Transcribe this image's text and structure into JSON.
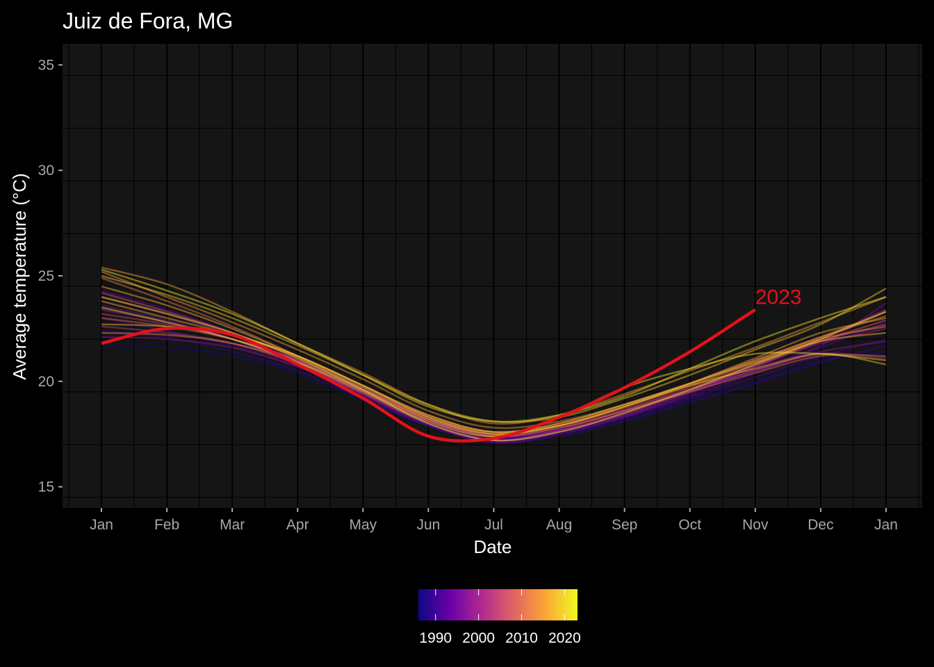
{
  "chart_data": {
    "type": "line",
    "title": "Juiz de Fora, MG",
    "xlabel": "Date",
    "ylabel": "Average temperature (°C)",
    "x_ticks": [
      "Jan",
      "Feb",
      "Mar",
      "Apr",
      "May",
      "Jun",
      "Jul",
      "Aug",
      "Sep",
      "Oct",
      "Nov",
      "Dec",
      "Jan"
    ],
    "ylim": [
      14,
      36
    ],
    "y_ticks": [
      15,
      20,
      25,
      30,
      35
    ],
    "grid": true,
    "background": "#151515",
    "legend": {
      "type": "colorbar",
      "placement": "bottom",
      "palette": "plasma",
      "colors": [
        "#0d0887",
        "#6a00a8",
        "#b12a90",
        "#e16462",
        "#fca636",
        "#f0f921"
      ],
      "range": [
        1986,
        2023
      ],
      "ticks": [
        "1990",
        "2000",
        "2010",
        "2020"
      ]
    },
    "highlight": {
      "name": "2023",
      "color": "#e3121b",
      "x": [
        0,
        1,
        2,
        3,
        4,
        5,
        6,
        7,
        8,
        9,
        10
      ],
      "y": [
        21.8,
        22.5,
        22.2,
        20.8,
        19.2,
        17.4,
        17.3,
        18.3,
        19.7,
        21.4,
        23.4
      ]
    },
    "series": [
      {
        "year": 1987,
        "x": [
          0,
          1,
          2,
          3,
          4,
          5,
          6,
          7,
          8,
          9,
          10,
          11,
          12
        ],
        "y": [
          21.7,
          21.6,
          21.2,
          20.4,
          19.1,
          17.9,
          17.2,
          17.5,
          18.2,
          19.1,
          20.0,
          21.0,
          21.4
        ]
      },
      {
        "year": 1989,
        "x": [
          0,
          1,
          2,
          3,
          4,
          5,
          6,
          7,
          8,
          9,
          10,
          11,
          12
        ],
        "y": [
          22.4,
          22.1,
          21.4,
          20.5,
          19.2,
          17.9,
          17.1,
          17.4,
          18.1,
          19.0,
          19.9,
          20.9,
          21.7
        ]
      },
      {
        "year": 1991,
        "x": [
          0,
          1,
          2,
          3,
          4,
          5,
          6,
          7,
          8,
          9,
          10,
          11,
          12
        ],
        "y": [
          23.0,
          22.4,
          21.7,
          20.7,
          19.4,
          18.1,
          17.3,
          17.6,
          18.3,
          19.2,
          20.2,
          21.2,
          22.0
        ]
      },
      {
        "year": 1993,
        "x": [
          0,
          1,
          2,
          3,
          4,
          5,
          6,
          7,
          8,
          9,
          10,
          11,
          12
        ],
        "y": [
          24.3,
          23.4,
          22.3,
          21.0,
          19.6,
          18.2,
          17.3,
          17.7,
          18.4,
          19.3,
          20.4,
          21.6,
          22.8
        ]
      },
      {
        "year": 1995,
        "x": [
          0,
          1,
          2,
          3,
          4,
          5,
          6,
          7,
          8,
          9,
          10,
          11,
          12
        ],
        "y": [
          23.6,
          22.9,
          22.0,
          20.8,
          19.3,
          17.9,
          17.1,
          17.5,
          18.3,
          19.4,
          20.6,
          21.7,
          23.7
        ]
      },
      {
        "year": 1997,
        "x": [
          0,
          1,
          2,
          3,
          4,
          5,
          6,
          7,
          8,
          9,
          10,
          11,
          12
        ],
        "y": [
          22.1,
          22.0,
          21.6,
          20.7,
          19.5,
          18.2,
          17.4,
          17.7,
          18.5,
          19.5,
          20.5,
          21.4,
          21.9
        ]
      },
      {
        "year": 1999,
        "x": [
          0,
          1,
          2,
          3,
          4,
          5,
          6,
          7,
          8,
          9,
          10,
          11,
          12
        ],
        "y": [
          23.4,
          22.8,
          22.0,
          20.9,
          19.5,
          18.1,
          17.2,
          17.6,
          18.4,
          19.5,
          20.7,
          21.8,
          22.5
        ]
      },
      {
        "year": 2001,
        "x": [
          0,
          1,
          2,
          3,
          4,
          5,
          6,
          7,
          8,
          9,
          10,
          11,
          12
        ],
        "y": [
          24.0,
          23.2,
          22.2,
          20.9,
          19.4,
          18.0,
          17.2,
          17.6,
          18.5,
          19.6,
          20.8,
          22.0,
          23.4
        ]
      },
      {
        "year": 2003,
        "x": [
          0,
          1,
          2,
          3,
          4,
          5,
          6,
          7,
          8,
          9,
          10,
          11,
          12
        ],
        "y": [
          22.6,
          22.3,
          21.8,
          20.8,
          19.4,
          18.0,
          17.2,
          17.7,
          18.6,
          19.6,
          20.5,
          21.3,
          21.1
        ]
      },
      {
        "year": 2005,
        "x": [
          0,
          1,
          2,
          3,
          4,
          5,
          6,
          7,
          8,
          9,
          10,
          11,
          12
        ],
        "y": [
          23.2,
          22.7,
          22.0,
          21.0,
          19.6,
          18.2,
          17.4,
          17.8,
          18.6,
          19.6,
          20.7,
          21.9,
          22.7
        ]
      },
      {
        "year": 2007,
        "x": [
          0,
          1,
          2,
          3,
          4,
          5,
          6,
          7,
          8,
          9,
          10,
          11,
          12
        ],
        "y": [
          24.2,
          23.3,
          22.3,
          21.1,
          19.7,
          18.3,
          17.5,
          17.9,
          18.7,
          19.7,
          20.8,
          21.9,
          22.9
        ]
      },
      {
        "year": 2009,
        "x": [
          0,
          1,
          2,
          3,
          4,
          5,
          6,
          7,
          8,
          9,
          10,
          11,
          12
        ],
        "y": [
          23.0,
          22.6,
          22.0,
          21.0,
          19.6,
          18.2,
          17.4,
          17.8,
          18.6,
          19.5,
          20.4,
          21.2,
          21.2
        ]
      },
      {
        "year": 2011,
        "x": [
          0,
          1,
          2,
          3,
          4,
          5,
          6,
          7,
          8,
          9,
          10,
          11,
          12
        ],
        "y": [
          24.9,
          23.8,
          22.6,
          21.2,
          19.7,
          18.3,
          17.6,
          18.0,
          18.9,
          19.9,
          21.0,
          22.1,
          23.1
        ]
      },
      {
        "year": 2013,
        "x": [
          0,
          1,
          2,
          3,
          4,
          5,
          6,
          7,
          8,
          9,
          10,
          11,
          12
        ],
        "y": [
          22.3,
          22.2,
          21.8,
          20.9,
          19.6,
          18.2,
          17.5,
          17.9,
          18.8,
          19.8,
          20.9,
          22.0,
          22.6
        ]
      },
      {
        "year": 2014,
        "x": [
          0,
          1,
          2,
          3,
          4,
          5,
          6,
          7,
          8,
          9,
          10,
          11,
          12
        ],
        "y": [
          25.2,
          24.0,
          22.8,
          21.5,
          20.1,
          18.6,
          17.8,
          18.1,
          18.9,
          19.9,
          21.0,
          22.1,
          23.3
        ]
      },
      {
        "year": 2015,
        "x": [
          0,
          1,
          2,
          3,
          4,
          5,
          6,
          7,
          8,
          9,
          10,
          11,
          12
        ],
        "y": [
          25.4,
          24.6,
          23.3,
          21.8,
          20.4,
          18.9,
          18.0,
          18.4,
          19.4,
          20.5,
          21.6,
          22.8,
          24.0
        ]
      },
      {
        "year": 2016,
        "x": [
          0,
          1,
          2,
          3,
          4,
          5,
          6,
          7,
          8,
          9,
          10,
          11,
          12
        ],
        "y": [
          23.8,
          23.0,
          22.2,
          21.2,
          19.8,
          18.4,
          17.6,
          17.9,
          18.8,
          19.9,
          21.1,
          22.3,
          23.0
        ]
      },
      {
        "year": 2017,
        "x": [
          0,
          1,
          2,
          3,
          4,
          5,
          6,
          7,
          8,
          9,
          10,
          11,
          12
        ],
        "y": [
          24.5,
          23.6,
          22.5,
          21.2,
          19.8,
          18.4,
          17.6,
          18.0,
          18.9,
          19.9,
          20.9,
          21.9,
          22.3
        ]
      },
      {
        "year": 2018,
        "x": [
          0,
          1,
          2,
          3,
          4,
          5,
          6,
          7,
          8,
          9,
          10,
          11,
          12
        ],
        "y": [
          22.7,
          22.6,
          22.2,
          21.2,
          19.8,
          18.3,
          17.5,
          17.9,
          18.8,
          19.8,
          20.6,
          21.3,
          20.8
        ]
      },
      {
        "year": 2019,
        "x": [
          0,
          1,
          2,
          3,
          4,
          5,
          6,
          7,
          8,
          9,
          10,
          11,
          12
        ],
        "y": [
          25.0,
          24.1,
          23.0,
          21.7,
          20.3,
          18.9,
          18.1,
          18.3,
          19.2,
          20.3,
          21.5,
          22.7,
          24.4
        ]
      },
      {
        "year": 2020,
        "x": [
          0,
          1,
          2,
          3,
          4,
          5,
          6,
          7,
          8,
          9,
          10,
          11,
          12
        ],
        "y": [
          24.0,
          23.2,
          22.3,
          21.1,
          19.6,
          18.0,
          17.2,
          17.6,
          18.5,
          19.6,
          20.8,
          22.0,
          23.3
        ]
      },
      {
        "year": 2021,
        "x": [
          0,
          1,
          2,
          3,
          4,
          5,
          6,
          7,
          8,
          9,
          10,
          11,
          12
        ],
        "y": [
          23.5,
          22.8,
          22.0,
          20.9,
          19.5,
          18.1,
          17.4,
          18.3,
          19.7,
          20.6,
          21.3,
          21.3,
          21.0
        ]
      },
      {
        "year": 2022,
        "x": [
          0,
          1,
          2,
          3,
          4,
          5,
          6,
          7,
          8,
          9,
          10,
          11,
          12
        ],
        "y": [
          25.3,
          24.3,
          23.2,
          21.8,
          20.3,
          18.8,
          18.1,
          18.4,
          19.3,
          20.6,
          21.9,
          23.0,
          24.0
        ]
      }
    ]
  }
}
